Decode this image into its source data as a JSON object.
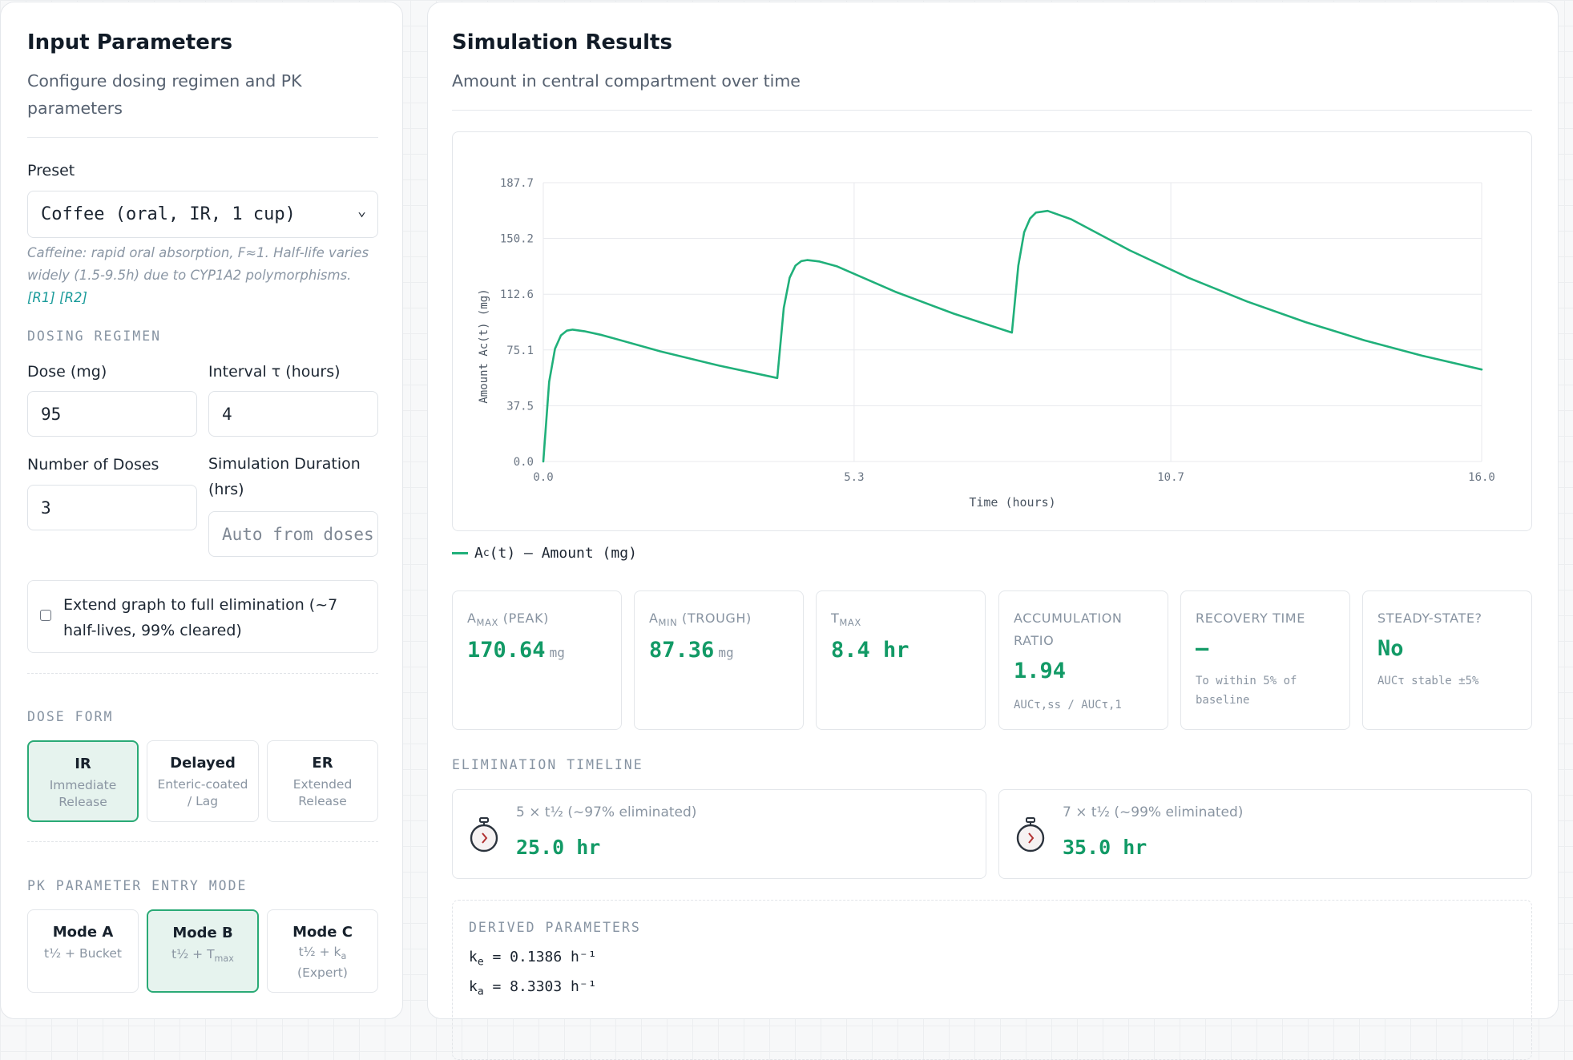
{
  "left": {
    "title": "Input Parameters",
    "subtitle": "Configure dosing regimen and PK parameters",
    "preset_label": "Preset",
    "preset_value": "Coffee (oral, IR, 1 cup)",
    "preset_note": "Caffeine: rapid oral absorption, F≈1. Half-life varies widely (1.5-9.5h) due to CYP1A2 polymorphisms.",
    "ref1": "[R1]",
    "ref2": "[R2]",
    "dosing_section": "DOSING REGIMEN",
    "dose_label": "Dose (mg)",
    "dose_value": "95",
    "interval_label": "Interval τ (hours)",
    "interval_value": "4",
    "num_doses_label": "Number of Doses",
    "num_doses_value": "3",
    "duration_label": "Simulation Duration (hrs)",
    "duration_placeholder": "Auto from doses",
    "extend_label": "Extend graph to full elimination (~7 half-lives, 99% cleared)",
    "dose_form_section": "DOSE FORM",
    "dose_forms": [
      {
        "title": "IR",
        "desc": "Immediate Release",
        "selected": true
      },
      {
        "title": "Delayed",
        "desc": "Enteric-coated / Lag",
        "selected": false
      },
      {
        "title": "ER",
        "desc": "Extended Release",
        "selected": false
      }
    ],
    "pk_mode_section": "PK PARAMETER ENTRY MODE",
    "pk_modes": [
      {
        "title": "Mode A",
        "desc": "t½ + Bucket",
        "selected": false
      },
      {
        "title": "Mode B",
        "desc_main": "t½ + T",
        "desc_sub": "max",
        "selected": true
      },
      {
        "title": "Mode C",
        "desc_main": "t½ + k",
        "desc_sub": "a",
        "desc2": "(Expert)",
        "selected": false
      }
    ]
  },
  "right": {
    "title": "Simulation Results",
    "subtitle": "Amount in central compartment over time",
    "legend_label": "(t) — Amount (mg)",
    "legend_prefix": "A",
    "legend_sub": "c",
    "metrics": [
      {
        "label_main": "A",
        "label_sub": "MAX",
        "label_tail": " (PEAK)",
        "value": "170.64",
        "unit": "mg"
      },
      {
        "label_main": "A",
        "label_sub": "MIN",
        "label_tail": " (TROUGH)",
        "value": "87.36",
        "unit": "mg"
      },
      {
        "label_main": "T",
        "label_sub": "MAX",
        "label_tail": "",
        "value": "8.4 hr",
        "unit": ""
      },
      {
        "label_main": "ACCUMULATION RATIO",
        "value": "1.94",
        "foot": "AUCτ,ss / AUCτ,1"
      },
      {
        "label_main": "RECOVERY TIME",
        "value": "—",
        "foot": "To within 5% of baseline"
      },
      {
        "label_main": "STEADY-STATE?",
        "value": "No",
        "foot": "AUCτ stable ±5%"
      }
    ],
    "elimination_section": "ELIMINATION TIMELINE",
    "elimination": [
      {
        "label": "5 × t½ (~97% eliminated)",
        "value": "25.0 hr"
      },
      {
        "label": "7 × t½ (~99% eliminated)",
        "value": "35.0 hr"
      }
    ],
    "derived_section": "DERIVED PARAMETERS",
    "derived": [
      {
        "sym": "k",
        "sub": "e",
        "text": " = 0.1386 h⁻¹"
      },
      {
        "sym": "k",
        "sub": "a",
        "text": " = 8.3303 h⁻¹"
      }
    ]
  },
  "colors": {
    "accent": "#20b07a",
    "value_green": "#129a66",
    "selected_bg": "#e6f3ee",
    "ref_link": "#1a9b9a"
  },
  "chart_data": {
    "type": "line",
    "xlabel": "Time (hours)",
    "ylabel": "Amount Ac(t) (mg)",
    "xlim": [
      0,
      16
    ],
    "ylim": [
      0,
      187.7
    ],
    "x_ticks": [
      "0.0",
      "5.3",
      "10.7",
      "16.0"
    ],
    "y_ticks": [
      "0.0",
      "37.5",
      "75.1",
      "112.6",
      "150.2",
      "187.7"
    ],
    "grid": true,
    "dose_times": [
      0,
      4,
      8
    ],
    "series": [
      {
        "values_desc": "one-compartment oral absorption, 95 mg every 4 h, 3 doses",
        "x": [
          0,
          0.1,
          0.2,
          0.3,
          0.4,
          0.5,
          0.7,
          1,
          2,
          3,
          3.99,
          4.1,
          4.2,
          4.3,
          4.4,
          4.5,
          4.7,
          5,
          6,
          7,
          7.99,
          8.1,
          8.2,
          8.3,
          8.4,
          8.6,
          9,
          10,
          11,
          12,
          13,
          14,
          15,
          16
        ],
        "y": [
          0,
          53.6,
          75.9,
          84.9,
          88.1,
          88.8,
          87.7,
          85.1,
          74.1,
          64.5,
          56.2,
          103.4,
          123.7,
          131.9,
          134.9,
          135.6,
          134.7,
          131.5,
          114.3,
          99.5,
          86.8,
          131.9,
          154.3,
          163.6,
          167.6,
          168.7,
          163.1,
          142.1,
          123.7,
          107.7,
          93.8,
          81.6,
          71.1,
          61.9
        ]
      }
    ]
  }
}
